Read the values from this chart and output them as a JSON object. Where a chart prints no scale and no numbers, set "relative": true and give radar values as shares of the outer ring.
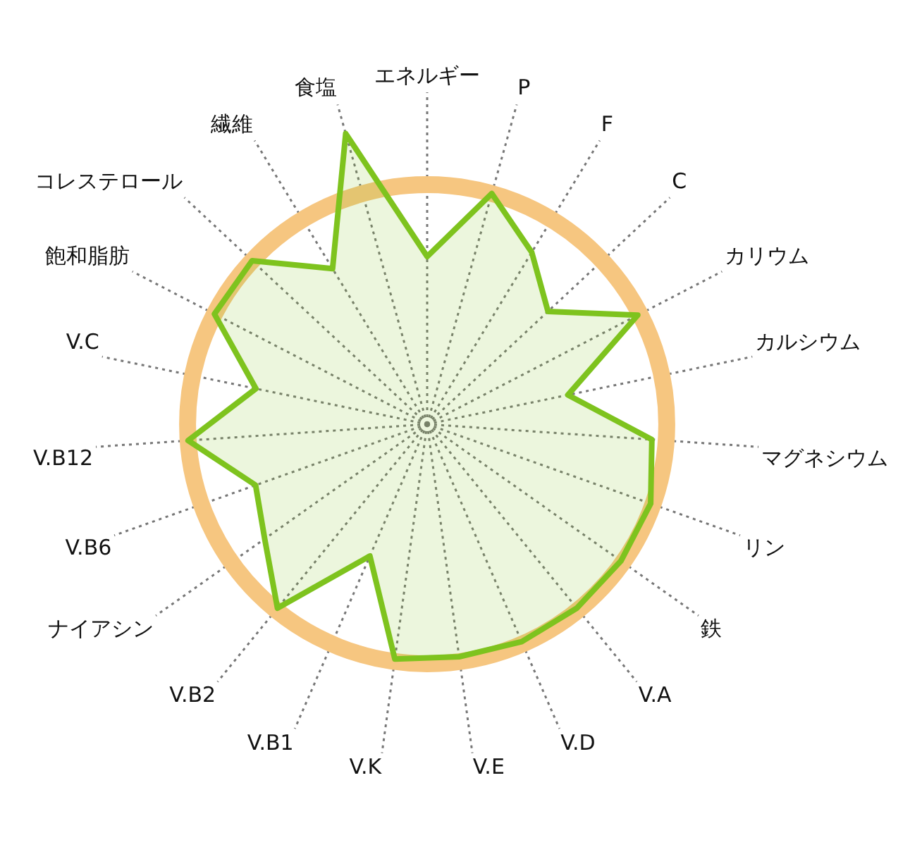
{
  "chart_data": {
    "type": "radar",
    "relative": true,
    "grid": true,
    "legend": false,
    "marker": "none",
    "categories": [
      "エネルギー",
      "P",
      "F",
      "C",
      "カリウム",
      "カルシウム",
      "マグネシウム",
      "リン",
      "鉄",
      "V.A",
      "V.D",
      "V.E",
      "V.K",
      "V.B1",
      "V.B2",
      "ナイアシン",
      "V.B6",
      "V.B12",
      "V.C",
      "飽和脂肪",
      "コレステロール",
      "繊維",
      "食塩"
    ],
    "series": [
      {
        "color": "#7ec31e",
        "values": [
          0.7,
          1.0,
          0.84,
          0.69,
          0.99,
          0.6,
          0.94,
          0.99,
          0.99,
          0.99,
          0.99,
          0.98,
          0.99,
          0.6,
          0.99,
          0.83,
          0.76,
          1.0,
          0.73,
          1.0,
          1.0,
          0.76,
          1.26
        ]
      }
    ]
  }
}
